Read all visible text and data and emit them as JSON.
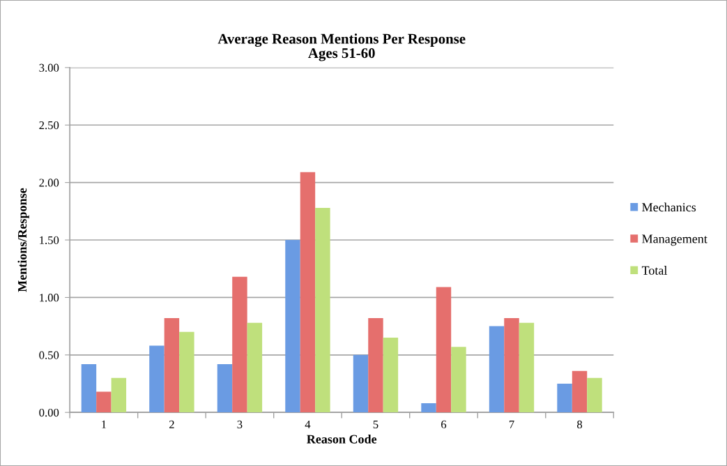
{
  "chart_data": {
    "type": "bar",
    "title": "Average Reason Mentions Per Response\nAges 51-60",
    "xlabel": "Reason Code",
    "ylabel": "Mentions/Response",
    "categories": [
      "1",
      "2",
      "3",
      "4",
      "5",
      "6",
      "7",
      "8"
    ],
    "series": [
      {
        "name": "Mechanics",
        "color": "#6a9be3",
        "values": [
          0.42,
          0.58,
          0.42,
          1.5,
          0.5,
          0.08,
          0.75,
          0.25
        ]
      },
      {
        "name": "Management",
        "color": "#e56f6d",
        "values": [
          0.18,
          0.82,
          1.18,
          2.09,
          0.82,
          1.09,
          0.82,
          0.36
        ]
      },
      {
        "name": "Total",
        "color": "#bfe07c",
        "values": [
          0.3,
          0.7,
          0.78,
          1.78,
          0.65,
          0.57,
          0.78,
          0.3
        ]
      }
    ],
    "ylim": [
      0,
      3
    ],
    "yticks": [
      {
        "value": 0,
        "label": "0.00"
      },
      {
        "value": 0.5,
        "label": "0.50"
      },
      {
        "value": 1,
        "label": "1.00"
      },
      {
        "value": 1.5,
        "label": "1.50"
      },
      {
        "value": 2,
        "label": "2.00"
      },
      {
        "value": 2.5,
        "label": "2.50"
      },
      {
        "value": 3,
        "label": "3.00"
      }
    ],
    "grid": "y",
    "legend": "right"
  }
}
